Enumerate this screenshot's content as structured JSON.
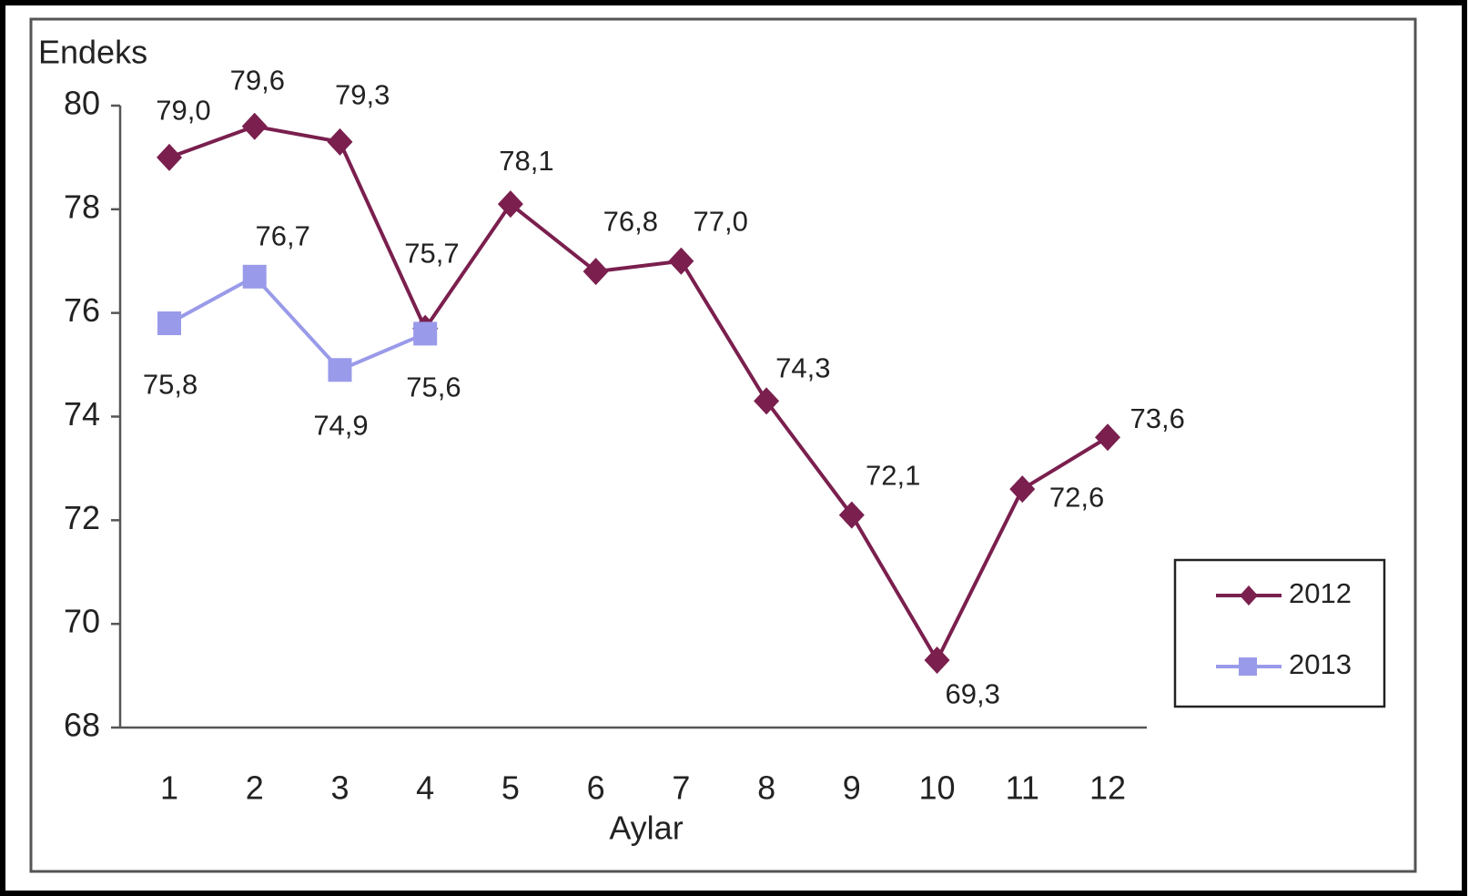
{
  "chart_data": {
    "type": "line",
    "y_label": "Endeks",
    "x_label": "Aylar",
    "categories": [
      "1",
      "2",
      "3",
      "4",
      "5",
      "6",
      "7",
      "8",
      "9",
      "10",
      "11",
      "12"
    ],
    "series": [
      {
        "name": "2012",
        "color": "#7a1f4e",
        "marker": "diamond",
        "values": [
          79.0,
          79.6,
          79.3,
          75.7,
          78.1,
          76.8,
          77.0,
          74.3,
          72.1,
          69.3,
          72.6,
          73.6
        ],
        "value_labels": [
          "79,0",
          "79,6",
          "79,3",
          "75,7",
          "78,1",
          "76,8",
          "77,0",
          "74,3",
          "72,1",
          "69,3",
          "72,6",
          "73,6"
        ]
      },
      {
        "name": "2013",
        "color": "#9a9aea",
        "marker": "square",
        "values": [
          75.8,
          76.7,
          74.9,
          75.6,
          null,
          null,
          null,
          null,
          null,
          null,
          null,
          null
        ],
        "value_labels": [
          "75,8",
          "76,7",
          "74,9",
          "75,6",
          null,
          null,
          null,
          null,
          null,
          null,
          null,
          null
        ]
      }
    ],
    "ylim": [
      68,
      80
    ],
    "yticks": [
      68,
      70,
      72,
      74,
      76,
      78,
      80
    ],
    "grid": false,
    "legend": "right"
  }
}
